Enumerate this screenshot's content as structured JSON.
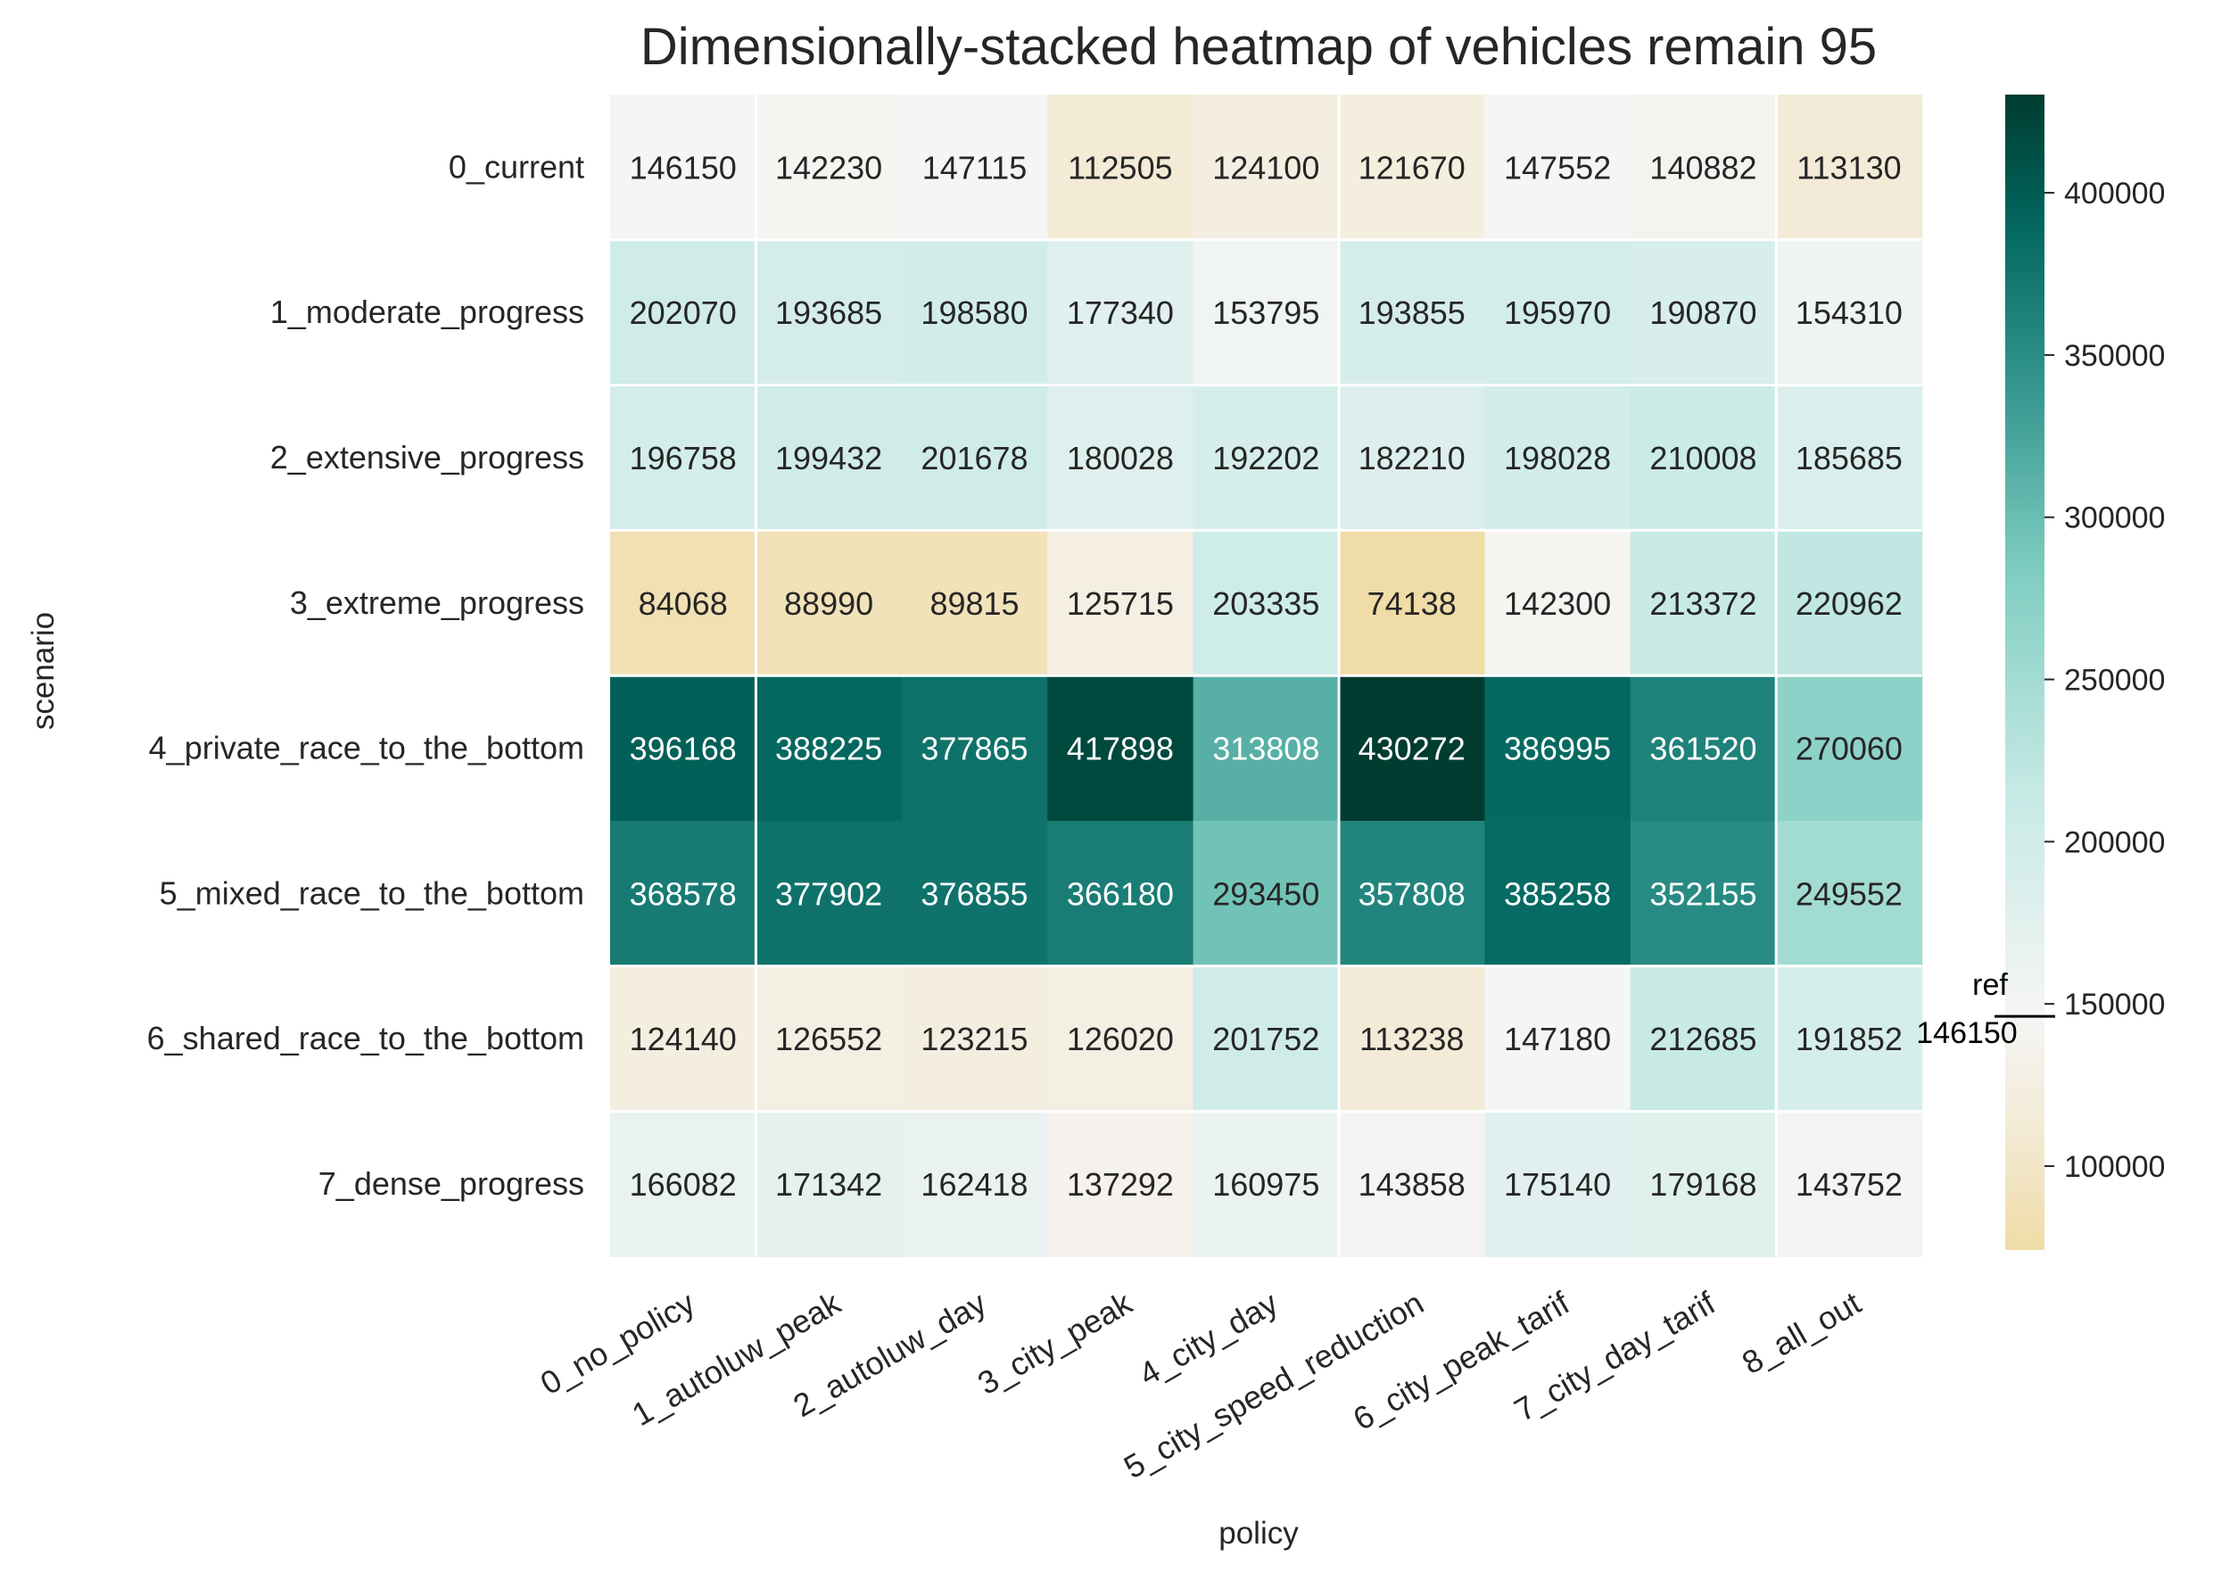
{
  "chart_data": {
    "type": "heatmap",
    "title": "Dimensionally-stacked heatmap of vehicles remain 95",
    "xlabel": "policy",
    "ylabel": "scenario",
    "x_categories": [
      "0_no_policy",
      "1_autoluw_peak",
      "2_autoluw_day",
      "3_city_peak",
      "4_city_day",
      "5_city_speed_reduction",
      "6_city_peak_tarif",
      "7_city_day_tarif",
      "8_all_out"
    ],
    "y_categories": [
      "0_current",
      "1_moderate_progress",
      "2_extensive_progress",
      "3_extreme_progress",
      "4_private_race_to_the_bottom",
      "5_mixed_race_to_the_bottom",
      "6_shared_race_to_the_bottom",
      "7_dense_progress"
    ],
    "values": [
      [
        146150,
        142230,
        147115,
        112505,
        124100,
        121670,
        147552,
        140882,
        113130
      ],
      [
        202070,
        193685,
        198580,
        177340,
        153795,
        193855,
        195970,
        190870,
        154310
      ],
      [
        196758,
        199432,
        201678,
        180028,
        192202,
        182210,
        198028,
        210008,
        185685
      ],
      [
        84068,
        88990,
        89815,
        125715,
        203335,
        74138,
        142300,
        213372,
        220962
      ],
      [
        396168,
        388225,
        377865,
        417898,
        313808,
        430272,
        386995,
        361520,
        270060
      ],
      [
        368578,
        377902,
        376855,
        366180,
        293450,
        357808,
        385258,
        352155,
        249552
      ],
      [
        124140,
        126552,
        123215,
        126020,
        201752,
        113238,
        147180,
        212685,
        191852
      ],
      [
        166082,
        171342,
        162418,
        137292,
        160975,
        143858,
        175140,
        179168,
        143752
      ]
    ],
    "colormap": "BrBG centered on reference value",
    "color_min": 74138,
    "color_center": 146150,
    "color_max": 430272,
    "colorbar_ticks": [
      100000,
      150000,
      200000,
      250000,
      300000,
      350000,
      400000
    ],
    "reference_marker": {
      "label": "ref",
      "value": "146150"
    },
    "separators": {
      "vertical_after_col": [
        0,
        4,
        7
      ],
      "horizontal_after_row": [
        0,
        1,
        2,
        3,
        5,
        6
      ],
      "color": "#ffffff"
    },
    "colors": {
      "low": "#f0dca6",
      "mid": "#f5f5f5",
      "high": "#003c30"
    },
    "grid": false,
    "legend": "colorbar-right"
  }
}
